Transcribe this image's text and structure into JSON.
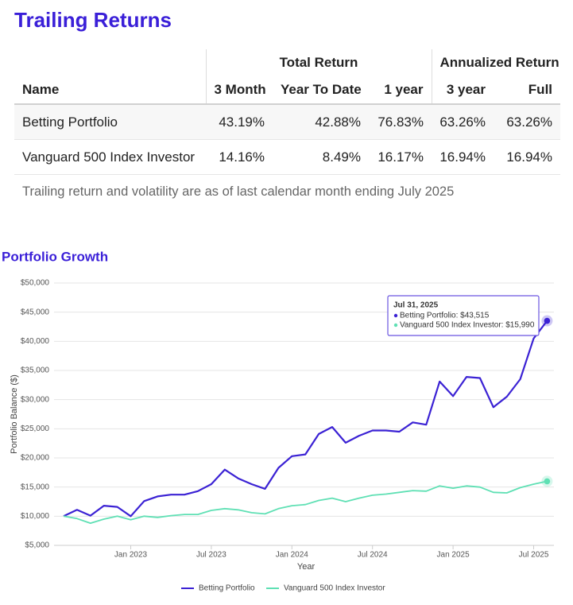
{
  "table": {
    "title": "Trailing Returns",
    "groups": [
      "Total Return",
      "Annualized Return"
    ],
    "columns": [
      "Name",
      "3 Month",
      "Year To Date",
      "1 year",
      "3 year",
      "Full"
    ],
    "rows": [
      [
        "Betting Portfolio",
        "43.19%",
        "42.88%",
        "76.83%",
        "63.26%",
        "63.26%"
      ],
      [
        "Vanguard 500 Index Investor",
        "14.16%",
        "8.49%",
        "16.17%",
        "16.94%",
        "16.94%"
      ]
    ],
    "note": "Trailing return and volatility are as of last calendar month ending July 2025"
  },
  "chart_data": {
    "type": "line",
    "title": "Portfolio Growth",
    "x_label": "Year",
    "y_label": "Portfolio Balance ($)",
    "x": [
      "2022-07",
      "2022-08",
      "2022-09",
      "2022-10",
      "2022-11",
      "2022-12",
      "2023-01",
      "2023-02",
      "2023-03",
      "2023-04",
      "2023-05",
      "2023-06",
      "2023-07",
      "2023-08",
      "2023-09",
      "2023-10",
      "2023-11",
      "2023-12",
      "2024-01",
      "2024-02",
      "2024-03",
      "2024-04",
      "2024-05",
      "2024-06",
      "2024-07",
      "2024-08",
      "2024-09",
      "2024-10",
      "2024-11",
      "2024-12",
      "2025-01",
      "2025-02",
      "2025-03",
      "2025-04",
      "2025-05",
      "2025-06",
      "2025-07"
    ],
    "series": [
      {
        "name": "Betting Portfolio",
        "color": "#3b22d4",
        "values": [
          10000,
          11100,
          10100,
          11800,
          11600,
          10000,
          12600,
          13400,
          13700,
          13700,
          14300,
          15500,
          18000,
          16500,
          15500,
          14700,
          18300,
          20300,
          20600,
          24100,
          25300,
          22600,
          23800,
          24700,
          24700,
          24500,
          26100,
          25700,
          33100,
          30600,
          33900,
          33700,
          28700,
          30500,
          33500,
          40500,
          43515
        ]
      },
      {
        "name": "Vanguard 500 Index Investor",
        "color": "#5fe0b4",
        "values": [
          10000,
          9600,
          8800,
          9500,
          10000,
          9400,
          10000,
          9800,
          10100,
          10300,
          10300,
          11000,
          11300,
          11100,
          10600,
          10400,
          11300,
          11800,
          12000,
          12700,
          13100,
          12500,
          13100,
          13600,
          13800,
          14100,
          14400,
          14300,
          15200,
          14800,
          15200,
          15000,
          14100,
          14000,
          14900,
          15500,
          15990
        ]
      }
    ],
    "ylim": [
      5000,
      50000
    ],
    "yticks": [
      {
        "value": 5000,
        "label": "$5,000"
      },
      {
        "value": 10000,
        "label": "$10,000"
      },
      {
        "value": 15000,
        "label": "$15,000"
      },
      {
        "value": 20000,
        "label": "$20,000"
      },
      {
        "value": 25000,
        "label": "$25,000"
      },
      {
        "value": 30000,
        "label": "$30,000"
      },
      {
        "value": 35000,
        "label": "$35,000"
      },
      {
        "value": 40000,
        "label": "$40,000"
      },
      {
        "value": 45000,
        "label": "$45,000"
      },
      {
        "value": 50000,
        "label": "$50,000"
      }
    ],
    "xticks": [
      {
        "value": "2023-01",
        "label": "Jan 2023"
      },
      {
        "value": "2023-07",
        "label": "Jul 2023"
      },
      {
        "value": "2024-01",
        "label": "Jan 2024"
      },
      {
        "value": "2024-07",
        "label": "Jul 2024"
      },
      {
        "value": "2025-01",
        "label": "Jan 2025"
      },
      {
        "value": "2025-07",
        "label": "Jul 2025"
      }
    ],
    "grid": true,
    "legend": "bottom",
    "tooltip": {
      "title": "Jul 31, 2025",
      "lines": [
        "Betting Portfolio: $43,515",
        "Vanguard 500 Index Investor: $15,990"
      ]
    }
  }
}
